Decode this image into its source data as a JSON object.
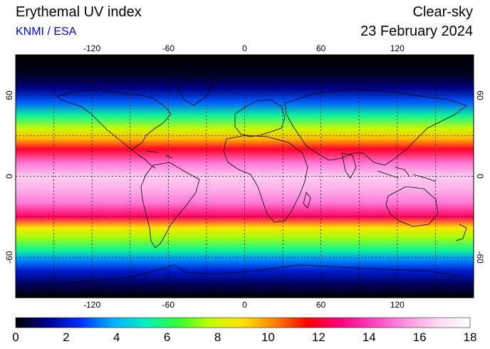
{
  "header": {
    "title": "Erythemal UV index",
    "source": "KNMI / ESA",
    "mode": "Clear-sky",
    "date": "23 February 2024"
  },
  "map": {
    "projection": "equirectangular",
    "lon_range": [
      -180,
      180
    ],
    "lat_range": [
      -90,
      90
    ],
    "lon_ticks": [
      -120,
      -60,
      0,
      60,
      120
    ],
    "lat_ticks": [
      -60,
      0,
      60
    ],
    "lon_tick_labels": [
      "-120",
      "-60",
      "0",
      "60",
      "120"
    ],
    "lat_tick_labels": [
      "-60",
      "0",
      "60"
    ],
    "grid_lons": [
      -150,
      -120,
      -90,
      -60,
      -30,
      0,
      30,
      60,
      90,
      120,
      150
    ],
    "grid_lats": [
      -60,
      -30,
      0,
      30,
      60
    ],
    "grid_style": "dotted black",
    "uv_profile": [
      {
        "lat": 90,
        "uv": 0
      },
      {
        "lat": 75,
        "uv": 0.3
      },
      {
        "lat": 65,
        "uv": 1.2
      },
      {
        "lat": 55,
        "uv": 3
      },
      {
        "lat": 45,
        "uv": 5.5
      },
      {
        "lat": 35,
        "uv": 8
      },
      {
        "lat": 28,
        "uv": 9.5
      },
      {
        "lat": 20,
        "uv": 12
      },
      {
        "lat": 10,
        "uv": 15
      },
      {
        "lat": 0,
        "uv": 16.5
      },
      {
        "lat": -10,
        "uv": 16
      },
      {
        "lat": -20,
        "uv": 15
      },
      {
        "lat": -30,
        "uv": 12.5
      },
      {
        "lat": -38,
        "uv": 9
      },
      {
        "lat": -45,
        "uv": 7.5
      },
      {
        "lat": -55,
        "uv": 5.5
      },
      {
        "lat": -62,
        "uv": 3.5
      },
      {
        "lat": -70,
        "uv": 2
      },
      {
        "lat": -80,
        "uv": 0.8
      },
      {
        "lat": -90,
        "uv": 0
      }
    ]
  },
  "colorbar": {
    "min": 0,
    "max": 18,
    "tick_labels": [
      "0",
      "2",
      "4",
      "6",
      "8",
      "10",
      "12",
      "14",
      "16",
      "18"
    ],
    "colors": [
      "#000000",
      "#000090",
      "#0030ff",
      "#00b0ff",
      "#00f0c0",
      "#30ff30",
      "#c0ff00",
      "#ffe000",
      "#ff8000",
      "#ff0000",
      "#ff0080",
      "#ff40c0",
      "#ff90e0",
      "#ffd8f4",
      "#ffffff"
    ]
  }
}
